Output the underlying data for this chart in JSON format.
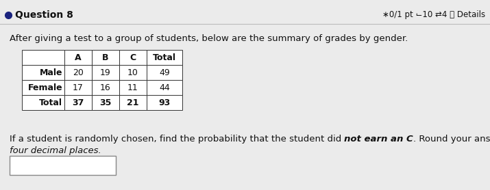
{
  "title": "Question 8",
  "top_right": "∗0/1 pt ⌙10 ⇄4 ⓘ Details",
  "intro_text": "After giving a test to a group of students, below are the summary of grades by gender.",
  "table_headers": [
    "",
    "A",
    "B",
    "C",
    "Total"
  ],
  "table_rows": [
    [
      "Male",
      "20",
      "19",
      "10",
      "49"
    ],
    [
      "Female",
      "17",
      "16",
      "11",
      "44"
    ],
    [
      "Total",
      "37",
      "35",
      "21",
      "93"
    ]
  ],
  "q_part1": "If a student is randomly chosen, find the probability that the student did ",
  "q_italic": "not earn an C",
  "q_part2": ". Round your answer to",
  "q_line2": "four decimal places.",
  "bg_color": "#ebebeb",
  "table_border_color": "#333333",
  "text_color": "#111111",
  "dot_color": "#1a237e",
  "header_line_color": "#aaaaaa",
  "input_border_color": "#888888",
  "font_size_header": 9.5,
  "font_size_body": 9.5,
  "font_size_table": 9.0,
  "font_size_top": 9.0
}
